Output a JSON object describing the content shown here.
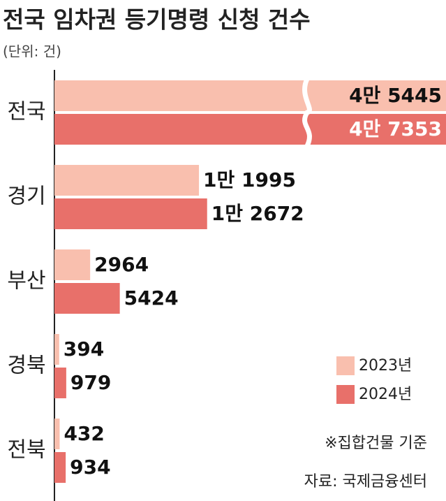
{
  "chart_data": {
    "type": "bar",
    "orientation": "horizontal",
    "title": "전국 임차권 등기명령 신청 건수",
    "subtitle": "(단위: 건)",
    "categories": [
      "전국",
      "경기",
      "부산",
      "경북",
      "전북"
    ],
    "series": [
      {
        "name": "2023년",
        "color": "#f9bfae",
        "values": [
          45445,
          11995,
          2964,
          394,
          432
        ],
        "value_labels": [
          "4만 5445",
          "1만 1995",
          "2964",
          "394",
          "432"
        ]
      },
      {
        "name": "2024년",
        "color": "#e8706a",
        "values": [
          47353,
          12672,
          5424,
          979,
          934
        ],
        "value_labels": [
          "4만 7353",
          "1만 2672",
          "5424",
          "979",
          "934"
        ]
      }
    ],
    "xlim": [
      0,
      32500
    ],
    "axis_break": true,
    "notes": [
      "※집합건물 기준",
      "자료: 국제금융센터"
    ]
  }
}
